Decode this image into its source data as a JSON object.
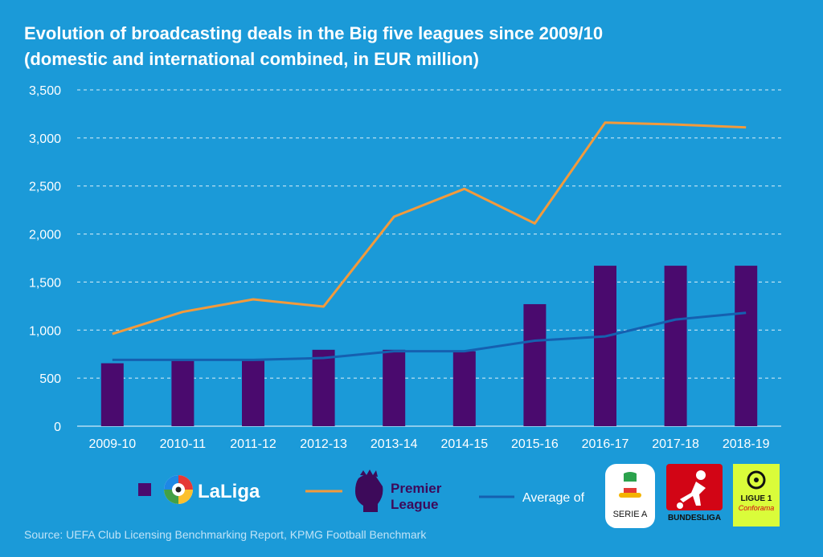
{
  "title_line1": "Evolution of broadcasting deals in the Big five leagues since 2009/10",
  "title_line2": "(domestic and international combined, in EUR million)",
  "source": "Source: UEFA Club Licensing Benchmarking Report, KPMG Football Benchmark",
  "colors": {
    "background": "#1b9ad8",
    "laliga_bar": "#4a0a6e",
    "premier_line": "#f39a3b",
    "average_line": "#1560b0",
    "grid": "#ffffff"
  },
  "legend": {
    "laliga": "LaLiga",
    "premier_line1": "Premier",
    "premier_line2": "League",
    "average": "Average of",
    "seriea": "SERIE A",
    "bundesliga": "BUNDESLIGA",
    "ligue1_line1": "LIGUE 1",
    "ligue1_line2": "Conforama"
  },
  "chart_data": {
    "type": "bar",
    "categories": [
      "2009-10",
      "2010-11",
      "2011-12",
      "2012-13",
      "2013-14",
      "2014-15",
      "2015-16",
      "2016-17",
      "2017-18",
      "2018-19"
    ],
    "ylim": [
      0,
      3500
    ],
    "yticks": [
      "0",
      "500",
      "1,000",
      "1,500",
      "2,000",
      "2,500",
      "3,000",
      "3,500"
    ],
    "ytick_values": [
      0,
      500,
      1000,
      1500,
      2000,
      2500,
      3000,
      3500
    ],
    "grid": true,
    "series": [
      {
        "name": "LaLiga",
        "kind": "bar",
        "values": [
          655,
          680,
          680,
          795,
          795,
          780,
          1270,
          1670,
          1670,
          1670
        ]
      },
      {
        "name": "Premier League",
        "kind": "line",
        "values": [
          960,
          1190,
          1320,
          1245,
          2180,
          2470,
          2110,
          3160,
          3140,
          3110
        ]
      },
      {
        "name": "Average of",
        "kind": "line",
        "values": [
          690,
          690,
          690,
          710,
          780,
          780,
          890,
          935,
          1110,
          1180
        ]
      }
    ]
  }
}
